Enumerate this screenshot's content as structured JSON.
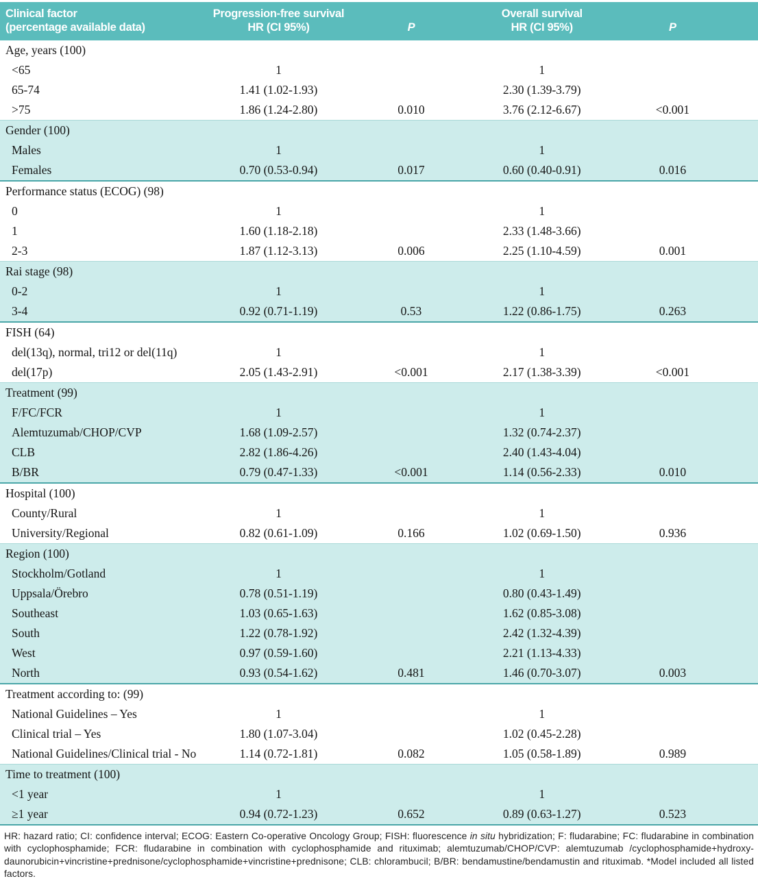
{
  "colors": {
    "header_teal": "#5bbcbc",
    "band_teal": "#cdeceb",
    "band_border": "#4aa6a8"
  },
  "table": {
    "header": {
      "columns": [
        {
          "line1": "Clinical factor",
          "line2": "(percentage available data)"
        },
        {
          "line1": "Progression-free survival",
          "line2": "HR (CI 95%)"
        },
        {
          "line1": "",
          "line2": "P"
        },
        {
          "line1": "Overall survival",
          "line2": "HR (CI 95%)"
        },
        {
          "line1": "",
          "line2": "P"
        }
      ]
    },
    "sections": [
      {
        "title": "Age, years (100)",
        "shaded": false,
        "rows": [
          {
            "label": "<65",
            "pfs_hr": "1",
            "pfs_p": "",
            "os_hr": "1",
            "os_p": ""
          },
          {
            "label": "65-74",
            "pfs_hr": "1.41 (1.02-1.93)",
            "pfs_p": "",
            "os_hr": "2.30 (1.39-3.79)",
            "os_p": ""
          },
          {
            "label": ">75",
            "pfs_hr": "1.86 (1.24-2.80)",
            "pfs_p": "0.010",
            "os_hr": "3.76 (2.12-6.67)",
            "os_p": "<0.001"
          }
        ]
      },
      {
        "title": "Gender (100)",
        "shaded": true,
        "rows": [
          {
            "label": "Males",
            "pfs_hr": "1",
            "pfs_p": "",
            "os_hr": "1",
            "os_p": ""
          },
          {
            "label": "Females",
            "pfs_hr": "0.70 (0.53-0.94)",
            "pfs_p": "0.017",
            "os_hr": "0.60 (0.40-0.91)",
            "os_p": "0.016"
          }
        ]
      },
      {
        "title": "Performance status (ECOG) (98)",
        "shaded": false,
        "rows": [
          {
            "label": "0",
            "pfs_hr": "1",
            "pfs_p": "",
            "os_hr": "1",
            "os_p": ""
          },
          {
            "label": "1",
            "pfs_hr": "1.60 (1.18-2.18)",
            "pfs_p": "",
            "os_hr": "2.33 (1.48-3.66)",
            "os_p": ""
          },
          {
            "label": "2-3",
            "pfs_hr": "1.87 (1.12-3.13)",
            "pfs_p": "0.006",
            "os_hr": "2.25 (1.10-4.59)",
            "os_p": "0.001"
          }
        ]
      },
      {
        "title": "Rai stage (98)",
        "shaded": true,
        "rows": [
          {
            "label": "0-2",
            "pfs_hr": "1",
            "pfs_p": "",
            "os_hr": "1",
            "os_p": ""
          },
          {
            "label": "3-4",
            "pfs_hr": "0.92 (0.71-1.19)",
            "pfs_p": "0.53",
            "os_hr": "1.22 (0.86-1.75)",
            "os_p": "0.263"
          }
        ]
      },
      {
        "title": "FISH (64)",
        "shaded": false,
        "rows": [
          {
            "label": "del(13q), normal, tri12 or del(11q)",
            "pfs_hr": "1",
            "pfs_p": "",
            "os_hr": "1",
            "os_p": ""
          },
          {
            "label": "del(17p)",
            "pfs_hr": "2.05 (1.43-2.91)",
            "pfs_p": "<0.001",
            "os_hr": "2.17 (1.38-3.39)",
            "os_p": "<0.001"
          }
        ]
      },
      {
        "title": "Treatment (99)",
        "shaded": true,
        "rows": [
          {
            "label": "F/FC/FCR",
            "pfs_hr": "1",
            "pfs_p": "",
            "os_hr": "1",
            "os_p": ""
          },
          {
            "label": "Alemtuzumab/CHOP/CVP",
            "pfs_hr": "1.68 (1.09-2.57)",
            "pfs_p": "",
            "os_hr": "1.32 (0.74-2.37)",
            "os_p": ""
          },
          {
            "label": "CLB",
            "pfs_hr": "2.82 (1.86-4.26)",
            "pfs_p": "",
            "os_hr": "2.40 (1.43-4.04)",
            "os_p": ""
          },
          {
            "label": "B/BR",
            "pfs_hr": "0.79 (0.47-1.33)",
            "pfs_p": "<0.001",
            "os_hr": "1.14 (0.56-2.33)",
            "os_p": "0.010"
          }
        ]
      },
      {
        "title": "Hospital (100)",
        "shaded": false,
        "rows": [
          {
            "label": "County/Rural",
            "pfs_hr": "1",
            "pfs_p": "",
            "os_hr": "1",
            "os_p": ""
          },
          {
            "label": "University/Regional",
            "pfs_hr": "0.82 (0.61-1.09)",
            "pfs_p": "0.166",
            "os_hr": "1.02 (0.69-1.50)",
            "os_p": "0.936"
          }
        ]
      },
      {
        "title": "Region (100)",
        "shaded": true,
        "rows": [
          {
            "label": "Stockholm/Gotland",
            "pfs_hr": "1",
            "pfs_p": "",
            "os_hr": "1",
            "os_p": ""
          },
          {
            "label": "Uppsala/Örebro",
            "pfs_hr": "0.78 (0.51-1.19)",
            "pfs_p": "",
            "os_hr": "0.80 (0.43-1.49)",
            "os_p": ""
          },
          {
            "label": "Southeast",
            "pfs_hr": "1.03 (0.65-1.63)",
            "pfs_p": "",
            "os_hr": "1.62 (0.85-3.08)",
            "os_p": ""
          },
          {
            "label": "South",
            "pfs_hr": "1.22 (0.78-1.92)",
            "pfs_p": "",
            "os_hr": "2.42 (1.32-4.39)",
            "os_p": ""
          },
          {
            "label": "West",
            "pfs_hr": "0.97 (0.59-1.60)",
            "pfs_p": "",
            "os_hr": "2.21 (1.13-4.33)",
            "os_p": ""
          },
          {
            "label": "North",
            "pfs_hr": "0.93 (0.54-1.62)",
            "pfs_p": "0.481",
            "os_hr": "1.46 (0.70-3.07)",
            "os_p": "0.003"
          }
        ]
      },
      {
        "title": "Treatment according to: (99)",
        "shaded": false,
        "rows": [
          {
            "label": "National Guidelines – Yes",
            "pfs_hr": "1",
            "pfs_p": "",
            "os_hr": "1",
            "os_p": ""
          },
          {
            "label": "Clinical trial – Yes",
            "pfs_hr": "1.80 (1.07-3.04)",
            "pfs_p": "",
            "os_hr": "1.02 (0.45-2.28)",
            "os_p": ""
          },
          {
            "label": "National Guidelines/Clinical trial - No",
            "pfs_hr": "1.14 (0.72-1.81)",
            "pfs_p": "0.082",
            "os_hr": "1.05 (0.58-1.89)",
            "os_p": "0.989"
          }
        ]
      },
      {
        "title": "Time to treatment (100)",
        "shaded": true,
        "rows": [
          {
            "label": "<1 year",
            "pfs_hr": "1",
            "pfs_p": "",
            "os_hr": "1",
            "os_p": ""
          },
          {
            "label": "≥1 year",
            "pfs_hr": "0.94 (0.72-1.23)",
            "pfs_p": "0.652",
            "os_hr": "0.89 (0.63-1.27)",
            "os_p": "0.523"
          }
        ]
      }
    ]
  },
  "footnote": {
    "part1": "HR: hazard ratio; CI: confidence interval; ECOG: Eastern Co-operative Oncology Group; FISH: fluorescence ",
    "italic": "in situ",
    "part2": " hybridization; F: fludarabine; FC: fludarabine in combination with cyclophosphamide; FCR: fludarabine in combination with cyclophosphamide and rituximab; alemtuzumab/CHOP/CVP: alemtuzumab /cyclophosphamide+hydroxy-daunorubicin+vincristine+prednisone/cyclophosphamide+vincristine+prednisone; CLB: chlorambucil; B/BR: bendamustine/bendamustin and rituximab. *Model included all listed factors."
  }
}
